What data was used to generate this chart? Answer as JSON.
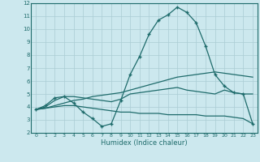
{
  "title": "",
  "xlabel": "Humidex (Indice chaleur)",
  "xlim": [
    -0.5,
    23.5
  ],
  "ylim": [
    2,
    12
  ],
  "xticks": [
    0,
    1,
    2,
    3,
    4,
    5,
    6,
    7,
    8,
    9,
    10,
    11,
    12,
    13,
    14,
    15,
    16,
    17,
    18,
    19,
    20,
    21,
    22,
    23
  ],
  "yticks": [
    2,
    3,
    4,
    5,
    6,
    7,
    8,
    9,
    10,
    11,
    12
  ],
  "bg_color": "#cce8ee",
  "line_color": "#1e6b6b",
  "grid_color": "#aaccd4",
  "lines": [
    {
      "x": [
        0,
        1,
        2,
        3,
        4,
        5,
        6,
        7,
        8,
        9,
        10,
        11,
        12,
        13,
        14,
        15,
        16,
        17,
        18,
        19,
        20,
        21,
        22,
        23
      ],
      "y": [
        3.8,
        4.1,
        4.7,
        4.8,
        4.3,
        3.6,
        3.1,
        2.5,
        2.7,
        4.5,
        6.5,
        7.9,
        9.6,
        10.7,
        11.1,
        11.7,
        11.3,
        10.5,
        8.7,
        6.5,
        5.6,
        5.1,
        5.0,
        2.7
      ],
      "marker": "+"
    },
    {
      "x": [
        0,
        1,
        2,
        3,
        4,
        5,
        6,
        7,
        8,
        9,
        10,
        11,
        12,
        13,
        14,
        15,
        16,
        17,
        18,
        19,
        20,
        21,
        22,
        23
      ],
      "y": [
        3.8,
        4.0,
        4.5,
        4.8,
        4.8,
        4.7,
        4.6,
        4.5,
        4.4,
        4.6,
        5.0,
        5.1,
        5.2,
        5.3,
        5.4,
        5.5,
        5.3,
        5.2,
        5.1,
        5.0,
        5.3,
        5.1,
        5.0,
        5.0
      ],
      "marker": null
    },
    {
      "x": [
        0,
        1,
        2,
        3,
        4,
        5,
        6,
        7,
        8,
        9,
        10,
        11,
        12,
        13,
        14,
        15,
        16,
        17,
        18,
        19,
        20,
        21,
        22,
        23
      ],
      "y": [
        3.8,
        3.9,
        4.1,
        4.3,
        4.5,
        4.6,
        4.8,
        4.9,
        5.0,
        5.1,
        5.3,
        5.5,
        5.7,
        5.9,
        6.1,
        6.3,
        6.4,
        6.5,
        6.6,
        6.7,
        6.6,
        6.5,
        6.4,
        6.3
      ],
      "marker": null
    },
    {
      "x": [
        0,
        1,
        2,
        3,
        4,
        5,
        6,
        7,
        8,
        9,
        10,
        11,
        12,
        13,
        14,
        15,
        16,
        17,
        18,
        19,
        20,
        21,
        22,
        23
      ],
      "y": [
        3.8,
        3.9,
        4.0,
        4.1,
        4.1,
        4.0,
        3.9,
        3.8,
        3.7,
        3.6,
        3.6,
        3.5,
        3.5,
        3.5,
        3.4,
        3.4,
        3.4,
        3.4,
        3.3,
        3.3,
        3.3,
        3.2,
        3.1,
        2.7
      ],
      "marker": null
    }
  ]
}
